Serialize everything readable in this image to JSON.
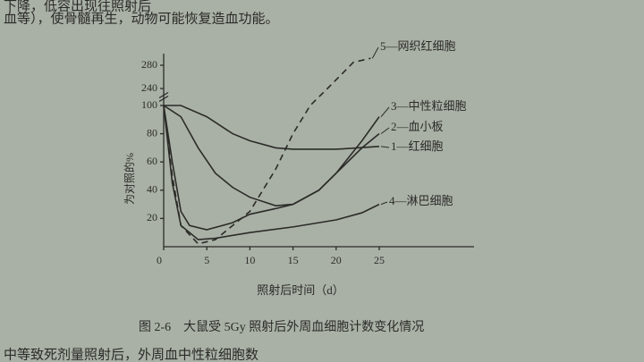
{
  "page_text": {
    "line1": "下降，低容出现往照射后",
    "line2": "血等），使骨髓再生，动物可能恢复造血功能。",
    "footer": "中等致死剂量照射后，外周血中性粒细胞数"
  },
  "chart_data": {
    "type": "line",
    "caption": "图 2-6　大鼠受 5Gy 照射后外周血细胞计数变化情况",
    "x_label": "照射后时间（d）",
    "y_label": "为对照的%",
    "xlim": [
      0,
      36
    ],
    "xticks": [
      0,
      5,
      10,
      15,
      20,
      25
    ],
    "ylim": [
      0,
      300
    ],
    "axis_break": [
      100,
      240
    ],
    "yticks": [
      20,
      40,
      60,
      80,
      100,
      240,
      280
    ],
    "series": [
      {
        "name": "1—红细胞",
        "color": "#2b2b28",
        "dashed": false,
        "x": [
          0,
          2,
          5,
          8,
          10,
          13,
          15,
          20,
          25
        ],
        "values": [
          100,
          100,
          92,
          80,
          75,
          70,
          69,
          69,
          71
        ]
      },
      {
        "name": "2—血小板",
        "color": "#2b2b28",
        "dashed": false,
        "x": [
          0,
          2,
          4,
          6,
          8,
          10,
          13,
          15,
          18,
          20,
          23,
          25
        ],
        "values": [
          100,
          92,
          70,
          52,
          42,
          35,
          29,
          30,
          40,
          52,
          70,
          80
        ]
      },
      {
        "name": "3—中性粒细胞",
        "color": "#2b2b28",
        "dashed": false,
        "x": [
          0,
          1,
          2,
          3,
          5,
          8,
          10,
          13,
          15,
          18,
          20,
          23,
          25
        ],
        "values": [
          100,
          60,
          25,
          15,
          12,
          17,
          23,
          27,
          30,
          40,
          52,
          75,
          92
        ]
      },
      {
        "name": "4—淋巴细胞",
        "color": "#2b2b28",
        "dashed": false,
        "x": [
          0,
          1,
          2,
          4,
          6,
          10,
          15,
          20,
          23,
          25
        ],
        "values": [
          100,
          45,
          15,
          5,
          6,
          10,
          14,
          19,
          24,
          30
        ]
      },
      {
        "name": "5—网织红细胞",
        "color": "#2b2b28",
        "dashed": true,
        "x": [
          0,
          1,
          2,
          4,
          6,
          10,
          13,
          15,
          17,
          19,
          22,
          24
        ],
        "values": [
          100,
          50,
          15,
          2,
          5,
          25,
          55,
          80,
          100,
          240,
          285,
          292
        ]
      }
    ]
  }
}
